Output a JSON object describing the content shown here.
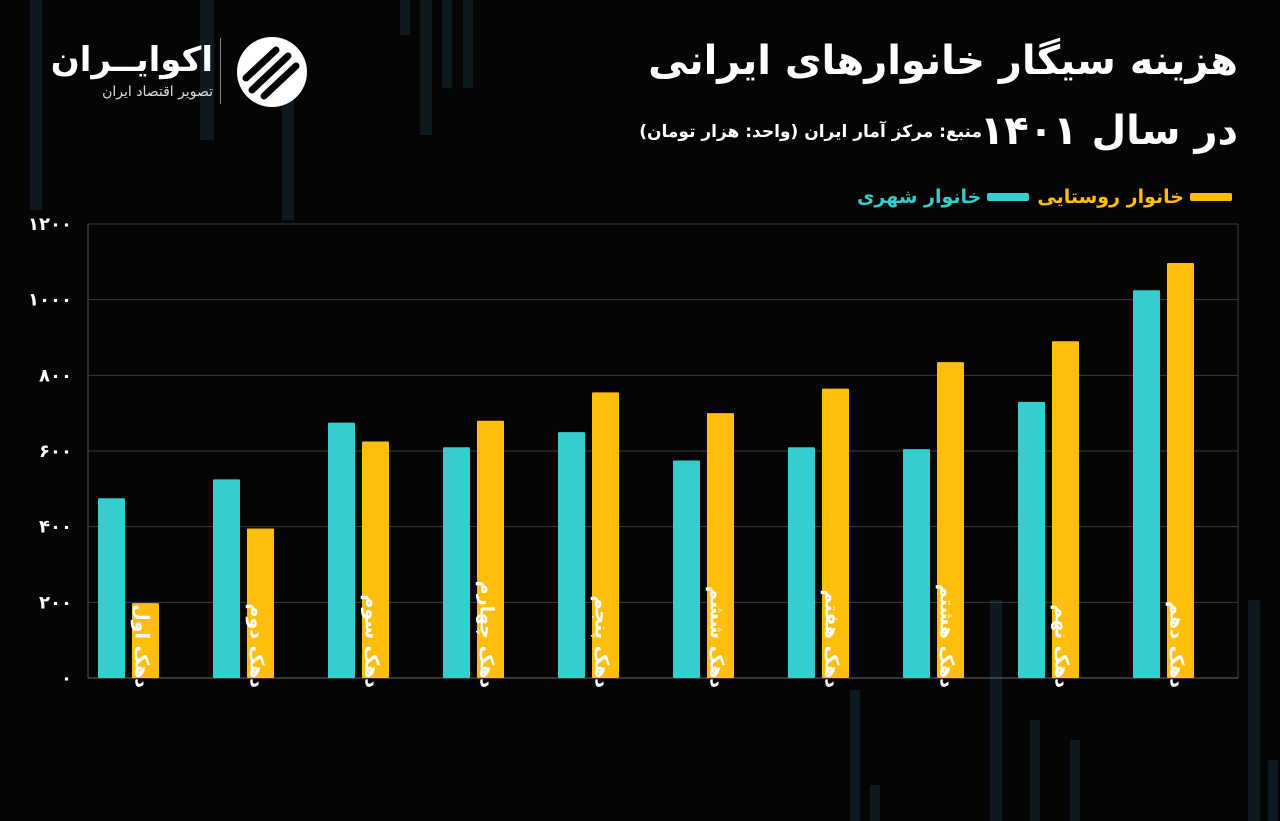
{
  "header": {
    "title": "هزینه سیگار خانوارهای ایرانی",
    "title_line2": "در سال ۱۴۰۱",
    "source": "منبع: مرکز آمار ایران (واحد: هزار تومان)"
  },
  "logo": {
    "name": "اکوایــران",
    "subtitle": "تصویر اقتصاد ایران"
  },
  "colors": {
    "background": "#050505",
    "urban": "#35cdcd",
    "rural": "#ffbe0b",
    "grid": "#3a3a3a"
  },
  "chart_data": {
    "type": "bar",
    "title": "هزینه سیگار خانوارهای ایرانی در سال ۱۴۰۱",
    "xlabel": "",
    "ylabel": "",
    "ylim": [
      0,
      1200
    ],
    "yticks": [
      0,
      200,
      400,
      600,
      800,
      1000,
      1200
    ],
    "ytick_labels": [
      "۰",
      "۲۰۰",
      "۴۰۰",
      "۶۰۰",
      "۸۰۰",
      "۱۰۰۰",
      "۱۲۰۰"
    ],
    "grid": true,
    "legend_position": "top-right",
    "categories": [
      "دهک اول",
      "دهک دوم",
      "دهک سوم",
      "دهک چهارم",
      "دهک پنجم",
      "دهک ششم",
      "دهک هفتم",
      "دهک هشتم",
      "دهک نهم",
      "دهک دهم"
    ],
    "series": [
      {
        "name": "خانوار شهری",
        "color": "#35cdcd",
        "values": [
          475,
          525,
          675,
          610,
          650,
          575,
          610,
          605,
          730,
          1025
        ]
      },
      {
        "name": "خانوار روستایی",
        "color": "#ffbe0b",
        "values": [
          198,
          395,
          625,
          680,
          755,
          700,
          765,
          835,
          890,
          1097
        ]
      }
    ]
  }
}
